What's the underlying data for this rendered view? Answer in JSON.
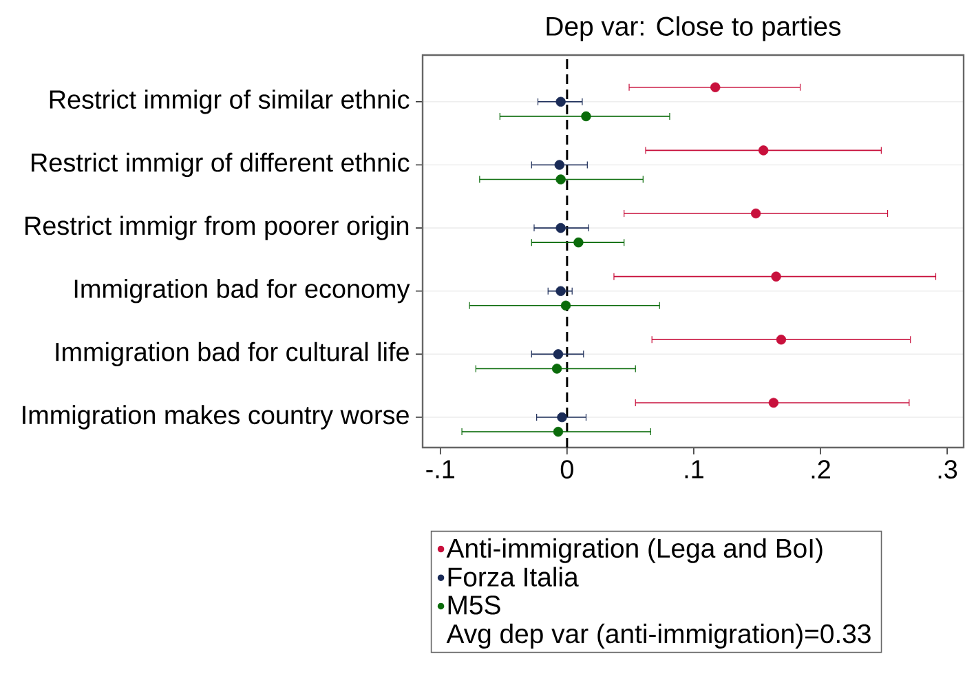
{
  "chart_data": {
    "type": "scatter",
    "orientation": "horizontal",
    "title": "Dep var: Close to parties",
    "categories": [
      "Restrict immigr of similar ethnic",
      "Restrict immigr of different ethnic",
      "Restrict immigr from poorer origin",
      "Immigration bad for economy",
      "Immigration bad for cultural life",
      "Immigration makes country worse"
    ],
    "series": [
      {
        "name": "Anti-immigration (Lega and BoI)",
        "color": "#c8103c",
        "values": [
          0.117,
          0.155,
          0.149,
          0.165,
          0.169,
          0.163
        ],
        "errors": [
          [
            0.049,
            0.184
          ],
          [
            0.062,
            0.248
          ],
          [
            0.045,
            0.253
          ],
          [
            0.037,
            0.291
          ],
          [
            0.067,
            0.271
          ],
          [
            0.054,
            0.27
          ]
        ]
      },
      {
        "name": "Forza Italia",
        "color": "#1a2b57",
        "values": [
          -0.005,
          -0.006,
          -0.005,
          -0.005,
          -0.007,
          -0.004
        ],
        "errors": [
          [
            -0.023,
            0.012
          ],
          [
            -0.028,
            0.016
          ],
          [
            -0.026,
            0.017
          ],
          [
            -0.015,
            0.004
          ],
          [
            -0.028,
            0.013
          ],
          [
            -0.024,
            0.015
          ]
        ]
      },
      {
        "name": "M5S",
        "color": "#0a6b0a",
        "values": [
          0.015,
          -0.005,
          0.009,
          -0.001,
          -0.008,
          -0.007
        ],
        "errors": [
          [
            -0.053,
            0.081
          ],
          [
            -0.069,
            0.06
          ],
          [
            -0.028,
            0.045
          ],
          [
            -0.077,
            0.073
          ],
          [
            -0.072,
            0.054
          ],
          [
            -0.083,
            0.066
          ]
        ]
      }
    ],
    "xlim": [
      -0.114,
      0.313
    ],
    "xticks": [
      {
        "value": -0.1,
        "label": "-.1"
      },
      0,
      {
        "value": 0.1,
        "label": ".1"
      },
      {
        "value": 0.2,
        "label": ".2"
      },
      {
        "value": 0.3,
        "label": ".3"
      }
    ],
    "ref_lines": [
      {
        "axis": "x",
        "value": 0,
        "color": "#000000",
        "line_style": "dashed"
      }
    ],
    "grid": "y",
    "marker": "circle",
    "legend": "bottom",
    "annotations": [
      "Avg dep var (anti-immigration)=0.33"
    ]
  }
}
